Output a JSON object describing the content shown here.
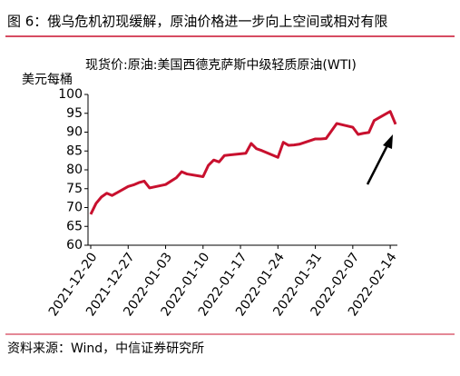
{
  "chart_data": {
    "type": "line",
    "title": "图 6：俄乌危机初现缓解，原油价格进一步向上空间或相对有限",
    "subtitle": "现货价:原油:美国西德克萨斯中级轻质原油(WTI)",
    "y_label": "美元每桶",
    "source": "资料来源：Wind，中信证券研究所",
    "x": [
      "2021-12-20",
      "2021-12-21",
      "2021-12-22",
      "2021-12-23",
      "2021-12-24",
      "2021-12-27",
      "2021-12-28",
      "2021-12-29",
      "2021-12-30",
      "2021-12-31",
      "2022-01-03",
      "2022-01-04",
      "2022-01-05",
      "2022-01-06",
      "2022-01-07",
      "2022-01-10",
      "2022-01-11",
      "2022-01-12",
      "2022-01-13",
      "2022-01-14",
      "2022-01-18",
      "2022-01-19",
      "2022-01-20",
      "2022-01-21",
      "2022-01-24",
      "2022-01-25",
      "2022-01-26",
      "2022-01-27",
      "2022-01-28",
      "2022-01-31",
      "2022-02-01",
      "2022-02-02",
      "2022-02-03",
      "2022-02-04",
      "2022-02-07",
      "2022-02-08",
      "2022-02-09",
      "2022-02-10",
      "2022-02-11",
      "2022-02-14",
      "2022-02-15"
    ],
    "series": [
      {
        "name": "现货价:原油:美国西德克萨斯中级轻质原油(WTI)",
        "color": "#c8102e",
        "values": [
          68.2,
          71.1,
          72.8,
          73.8,
          73.2,
          75.6,
          76.0,
          76.6,
          77.0,
          75.2,
          76.1,
          77.0,
          77.9,
          79.5,
          78.9,
          78.2,
          81.2,
          82.6,
          82.1,
          83.8,
          84.4,
          87.0,
          85.6,
          85.1,
          83.3,
          87.3,
          86.5,
          86.6,
          86.8,
          88.2,
          88.2,
          88.3,
          90.3,
          92.3,
          91.3,
          89.4,
          89.7,
          89.9,
          93.1,
          95.5,
          92.1
        ]
      }
    ],
    "xlim": [
      "2021-12-20",
      "2022-02-15"
    ],
    "xticks": [
      "2021-12-20",
      "2021-12-27",
      "2022-01-03",
      "2022-01-10",
      "2022-01-17",
      "2022-01-24",
      "2022-01-31",
      "2022-02-07",
      "2022-02-14"
    ],
    "ylim": [
      60,
      100
    ],
    "yticks": [
      60,
      65,
      70,
      75,
      80,
      85,
      90,
      95,
      100
    ],
    "grid": false
  }
}
